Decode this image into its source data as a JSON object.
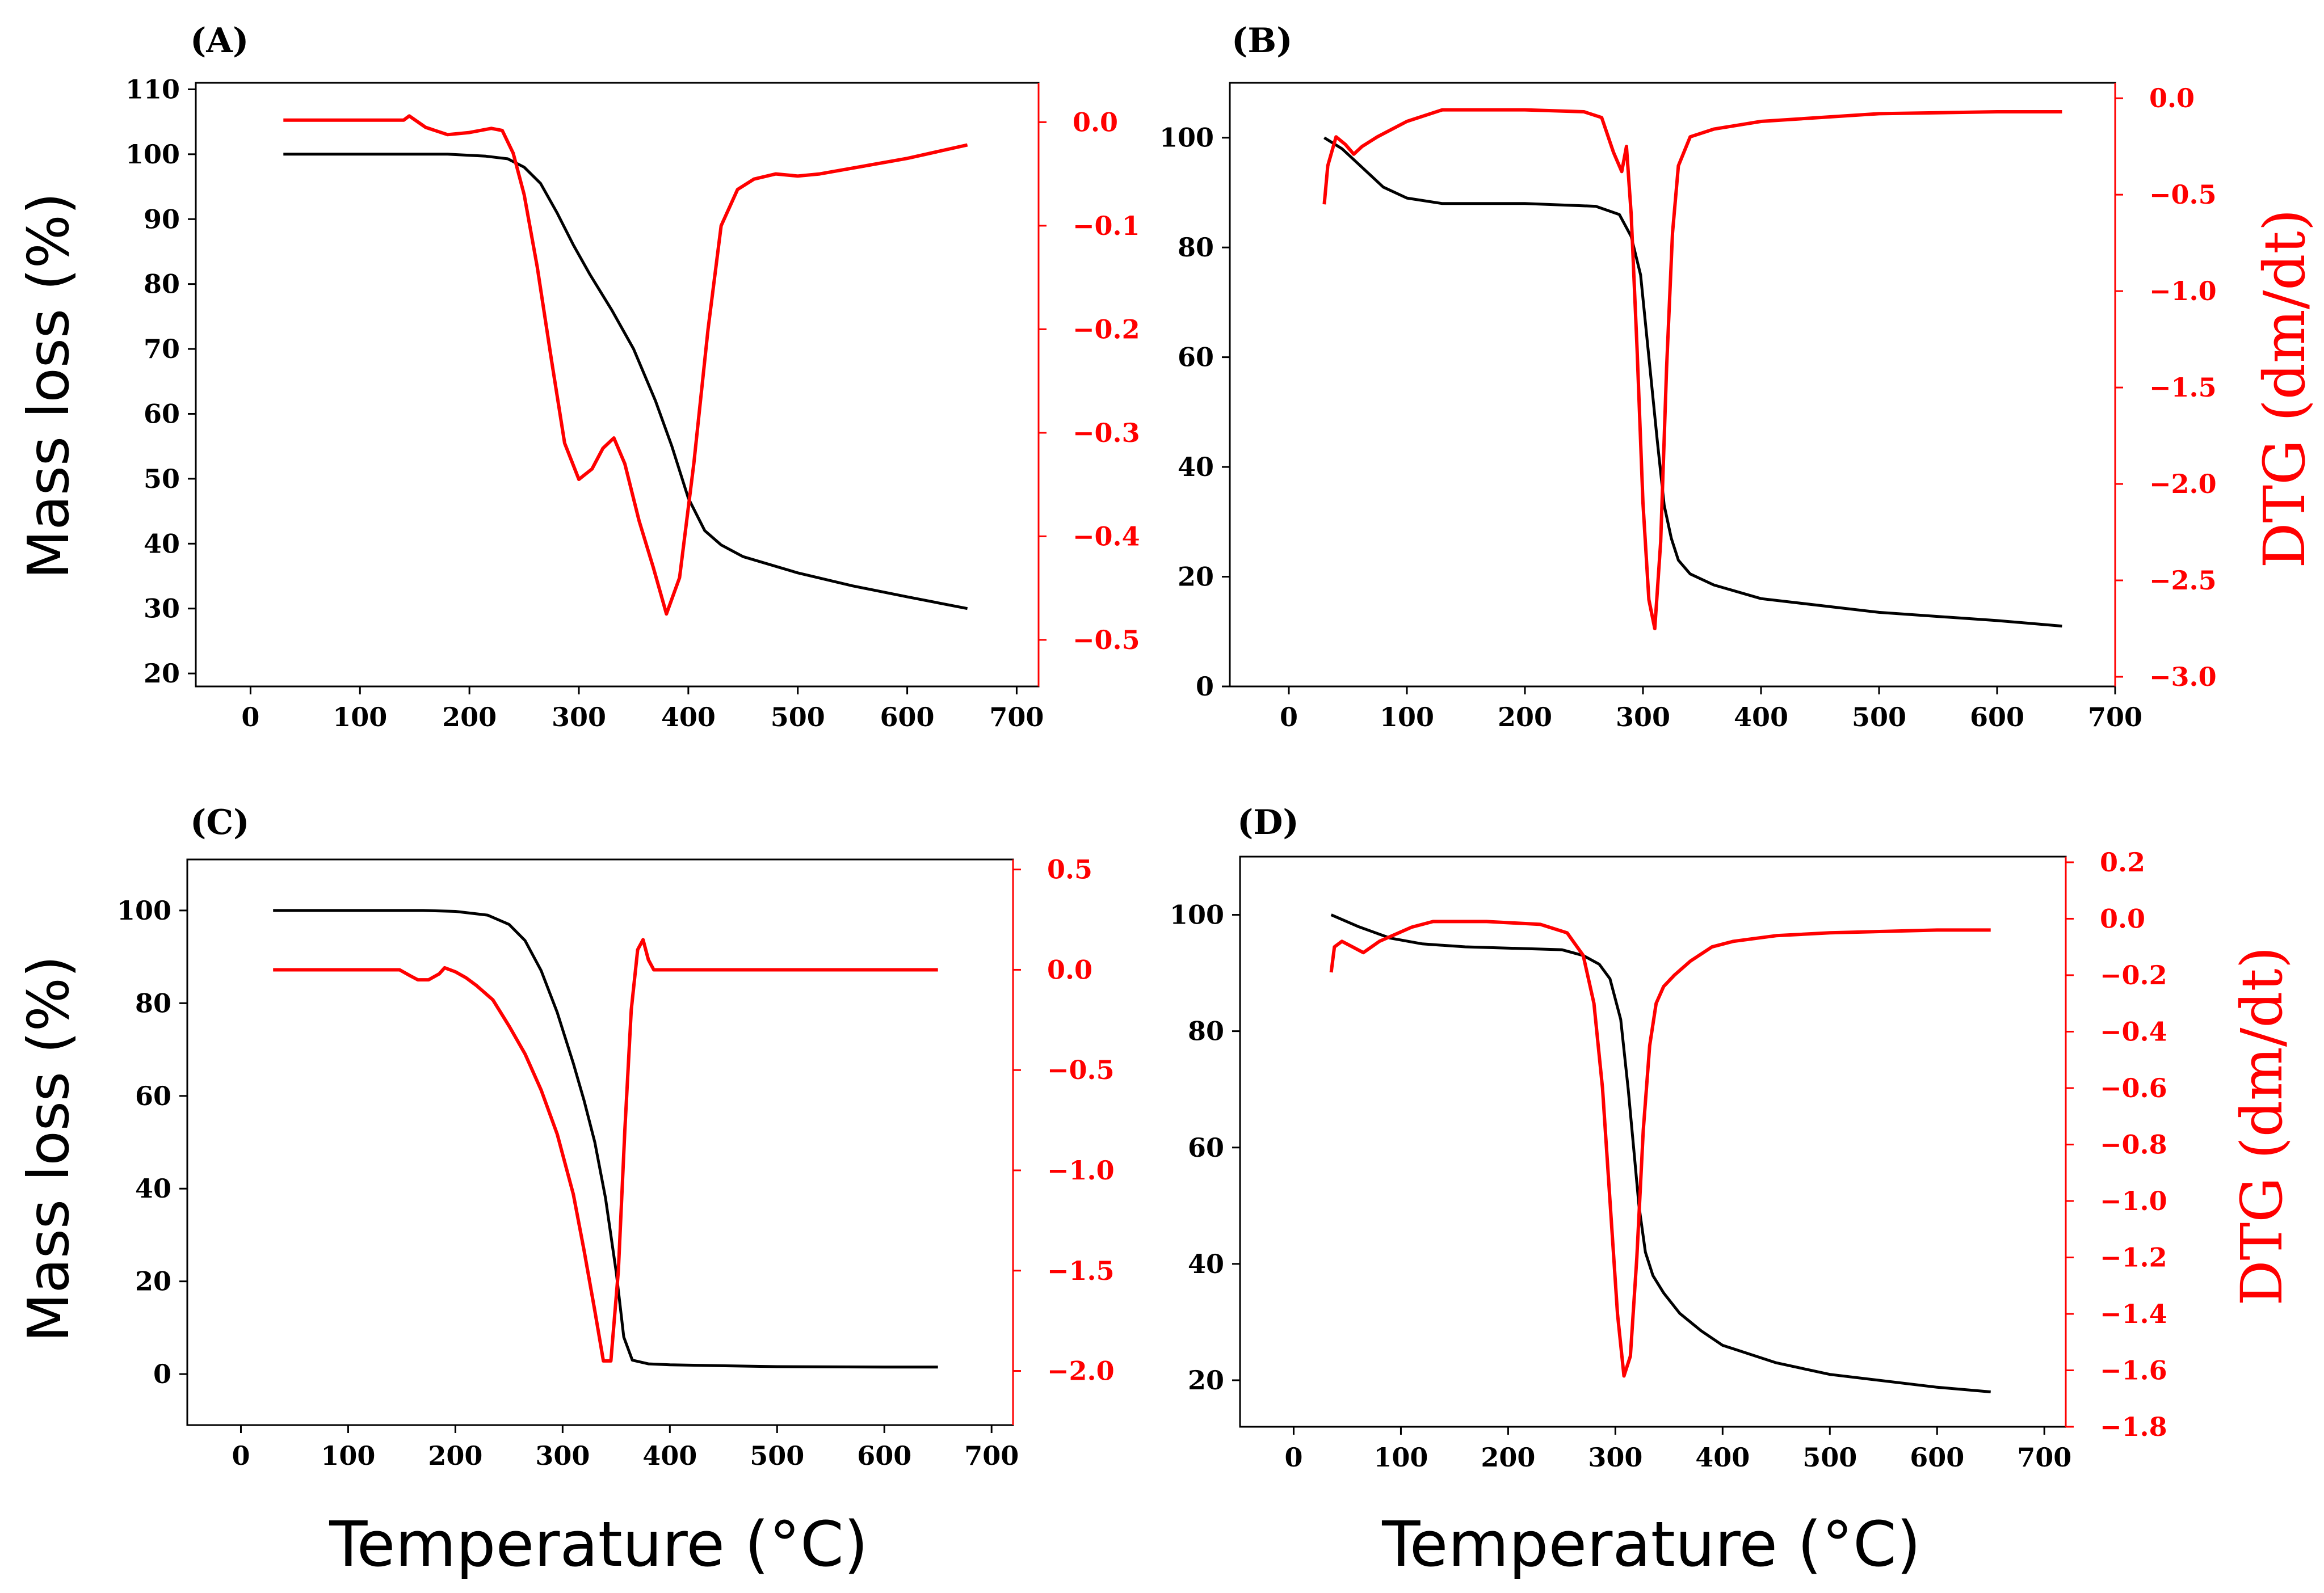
{
  "figure": {
    "x_axis_title": "Temperature (°C)",
    "left_axis_title": "Mass loss (%)",
    "right_axis_title": "DTG (dm/dt)",
    "colors": {
      "mass": "#000000",
      "dtg": "#ff0000"
    }
  },
  "chart_data": [
    {
      "panel": "(A)",
      "type": "line",
      "xlabel": "",
      "ylabel": "Mass loss (%)",
      "y2label": "",
      "xlim": [
        -50,
        720
      ],
      "ylim": [
        18,
        111
      ],
      "y2lim": [
        -0.545,
        0.038
      ],
      "x_ticks": [
        0,
        100,
        200,
        300,
        400,
        500,
        600,
        700
      ],
      "y_ticks": [
        20,
        30,
        40,
        50,
        60,
        70,
        80,
        90,
        100,
        110
      ],
      "y2_ticks": [
        0.0,
        -0.1,
        -0.2,
        -0.3,
        -0.4,
        -0.5
      ],
      "y2_tick_labels": [
        "0.0",
        "−0.1",
        "−0.2",
        "−0.3",
        "−0.4",
        "−0.5"
      ],
      "series": [
        {
          "name": "Mass loss",
          "axis": "left",
          "x": [
            30,
            100,
            180,
            215,
            235,
            250,
            265,
            280,
            295,
            310,
            330,
            350,
            370,
            385,
            400,
            415,
            430,
            450,
            500,
            550,
            600,
            655
          ],
          "values": [
            100,
            100,
            100,
            99.7,
            99.3,
            98,
            95.5,
            91,
            86,
            81.5,
            76,
            70,
            62,
            55,
            47,
            42,
            39.8,
            38,
            35.5,
            33.5,
            31.8,
            30
          ]
        },
        {
          "name": "DTG",
          "axis": "right",
          "x": [
            30,
            80,
            140,
            145,
            160,
            180,
            200,
            220,
            230,
            240,
            250,
            262,
            275,
            287,
            300,
            312,
            322,
            332,
            342,
            355,
            368,
            380,
            392,
            405,
            418,
            430,
            445,
            460,
            480,
            500,
            520,
            600,
            655
          ],
          "values": [
            0.002,
            0.002,
            0.002,
            0.006,
            -0.005,
            -0.012,
            -0.01,
            -0.006,
            -0.008,
            -0.03,
            -0.07,
            -0.14,
            -0.23,
            -0.31,
            -0.345,
            -0.335,
            -0.315,
            -0.305,
            -0.33,
            -0.385,
            -0.43,
            -0.475,
            -0.44,
            -0.33,
            -0.2,
            -0.1,
            -0.065,
            -0.055,
            -0.05,
            -0.052,
            -0.05,
            -0.035,
            -0.022
          ]
        }
      ]
    },
    {
      "panel": "(B)",
      "type": "line",
      "xlabel": "",
      "ylabel": "",
      "y2label": "DTG (dm/dt)",
      "xlim": [
        -50,
        700
      ],
      "ylim": [
        0,
        110
      ],
      "y2lim": [
        -3.05,
        0.08
      ],
      "x_ticks": [
        0,
        100,
        200,
        300,
        400,
        500,
        600,
        700
      ],
      "y_ticks": [
        0,
        20,
        40,
        60,
        80,
        100
      ],
      "y2_ticks": [
        0.0,
        -0.5,
        -1.0,
        -1.5,
        -2.0,
        -2.5,
        -3.0
      ],
      "y2_tick_labels": [
        "0.0",
        "−0.5",
        "−1.0",
        "−1.5",
        "−2.0",
        "−2.5",
        "−3.0"
      ],
      "series": [
        {
          "name": "Mass loss",
          "axis": "left",
          "x": [
            30,
            45,
            60,
            80,
            100,
            130,
            200,
            260,
            280,
            290,
            298,
            305,
            312,
            318,
            324,
            330,
            340,
            360,
            400,
            500,
            600,
            655
          ],
          "values": [
            100,
            98,
            95,
            91,
            89,
            88,
            88,
            87.5,
            86,
            82,
            75,
            60,
            45,
            33,
            27,
            23,
            20.5,
            18.5,
            16,
            13.5,
            12,
            11
          ]
        },
        {
          "name": "DTG",
          "axis": "right",
          "x": [
            30,
            33,
            40,
            48,
            55,
            62,
            75,
            100,
            130,
            200,
            250,
            265,
            275,
            282,
            286,
            290,
            295,
            300,
            305,
            310,
            315,
            320,
            325,
            330,
            340,
            360,
            400,
            500,
            600,
            655
          ],
          "values": [
            -0.55,
            -0.35,
            -0.2,
            -0.24,
            -0.29,
            -0.25,
            -0.2,
            -0.12,
            -0.06,
            -0.06,
            -0.07,
            -0.1,
            -0.28,
            -0.38,
            -0.25,
            -0.6,
            -1.3,
            -2.1,
            -2.6,
            -2.75,
            -2.3,
            -1.4,
            -0.7,
            -0.35,
            -0.2,
            -0.16,
            -0.12,
            -0.08,
            -0.07,
            -0.07
          ]
        }
      ]
    },
    {
      "panel": "(C)",
      "type": "line",
      "xlabel": "Temperature (°C)",
      "ylabel": "Mass loss (%)",
      "y2label": "",
      "xlim": [
        -50,
        720
      ],
      "ylim": [
        -11,
        111
      ],
      "y2lim": [
        -2.27,
        0.55
      ],
      "x_ticks": [
        0,
        100,
        200,
        300,
        400,
        500,
        600,
        700
      ],
      "y_ticks": [
        0,
        20,
        40,
        60,
        80,
        100
      ],
      "y2_ticks": [
        0.5,
        0.0,
        -0.5,
        -1.0,
        -1.5,
        -2.0
      ],
      "y2_tick_labels": [
        "0.5",
        "0.0",
        "−0.5",
        "−1.0",
        "−1.5",
        "−2.0"
      ],
      "series": [
        {
          "name": "Mass loss",
          "axis": "left",
          "x": [
            30,
            100,
            170,
            200,
            230,
            250,
            265,
            280,
            295,
            310,
            320,
            330,
            340,
            350,
            357,
            365,
            380,
            400,
            500,
            600,
            650
          ],
          "values": [
            100,
            100,
            100,
            99.8,
            99,
            97,
            93.5,
            87,
            78,
            67,
            59,
            50,
            38,
            22,
            8,
            3,
            2.2,
            2,
            1.6,
            1.5,
            1.5
          ]
        },
        {
          "name": "DTG",
          "axis": "right",
          "x": [
            30,
            100,
            148,
            158,
            165,
            175,
            185,
            190,
            200,
            210,
            220,
            235,
            250,
            265,
            280,
            295,
            310,
            320,
            330,
            338,
            345,
            352,
            358,
            364,
            370,
            375,
            380,
            385,
            395,
            500,
            650
          ],
          "values": [
            0.0,
            0.0,
            0.0,
            -0.03,
            -0.05,
            -0.05,
            -0.02,
            0.01,
            -0.01,
            -0.04,
            -0.08,
            -0.15,
            -0.28,
            -0.42,
            -0.6,
            -0.82,
            -1.12,
            -1.4,
            -1.7,
            -1.95,
            -1.95,
            -1.5,
            -0.8,
            -0.2,
            0.1,
            0.15,
            0.05,
            0.0,
            0.0,
            0.0,
            0.0
          ]
        }
      ]
    },
    {
      "panel": "(D)",
      "type": "line",
      "xlabel": "Temperature (°C)",
      "ylabel": "",
      "y2label": "DTG (dm/dt)",
      "xlim": [
        -50,
        720
      ],
      "ylim": [
        12,
        110
      ],
      "y2lim": [
        -1.8,
        0.22
      ],
      "x_ticks": [
        0,
        100,
        200,
        300,
        400,
        500,
        600,
        700
      ],
      "y_ticks": [
        20,
        40,
        60,
        80,
        100
      ],
      "y2_ticks": [
        0.2,
        0.0,
        -0.2,
        -0.4,
        -0.6,
        -0.8,
        -1.0,
        -1.2,
        -1.4,
        -1.6,
        -1.8
      ],
      "y2_tick_labels": [
        "0.2",
        "0.0",
        "−0.2",
        "−0.4",
        "−0.6",
        "−0.8",
        "−1.0",
        "−1.2",
        "−1.4",
        "−1.6",
        "−1.8"
      ],
      "series": [
        {
          "name": "Mass loss",
          "axis": "left",
          "x": [
            35,
            60,
            90,
            120,
            160,
            250,
            270,
            285,
            295,
            305,
            312,
            318,
            322,
            328,
            335,
            345,
            360,
            380,
            400,
            450,
            500,
            600,
            650
          ],
          "values": [
            100,
            98,
            96,
            95,
            94.5,
            94,
            93,
            91.5,
            89,
            82,
            70,
            58,
            50,
            42,
            38,
            35,
            31.5,
            28.5,
            26,
            23,
            21,
            18.8,
            18
          ]
        },
        {
          "name": "DTG",
          "axis": "right",
          "x": [
            35,
            38,
            45,
            55,
            65,
            80,
            110,
            130,
            180,
            230,
            255,
            270,
            280,
            288,
            295,
            302,
            308,
            314,
            320,
            326,
            332,
            338,
            345,
            355,
            370,
            390,
            410,
            450,
            500,
            600,
            650
          ],
          "values": [
            -0.19,
            -0.1,
            -0.08,
            -0.1,
            -0.12,
            -0.08,
            -0.03,
            -0.01,
            -0.01,
            -0.02,
            -0.05,
            -0.13,
            -0.3,
            -0.6,
            -1.0,
            -1.4,
            -1.62,
            -1.55,
            -1.2,
            -0.75,
            -0.45,
            -0.3,
            -0.24,
            -0.2,
            -0.15,
            -0.1,
            -0.08,
            -0.06,
            -0.05,
            -0.04,
            -0.04
          ]
        }
      ]
    }
  ]
}
